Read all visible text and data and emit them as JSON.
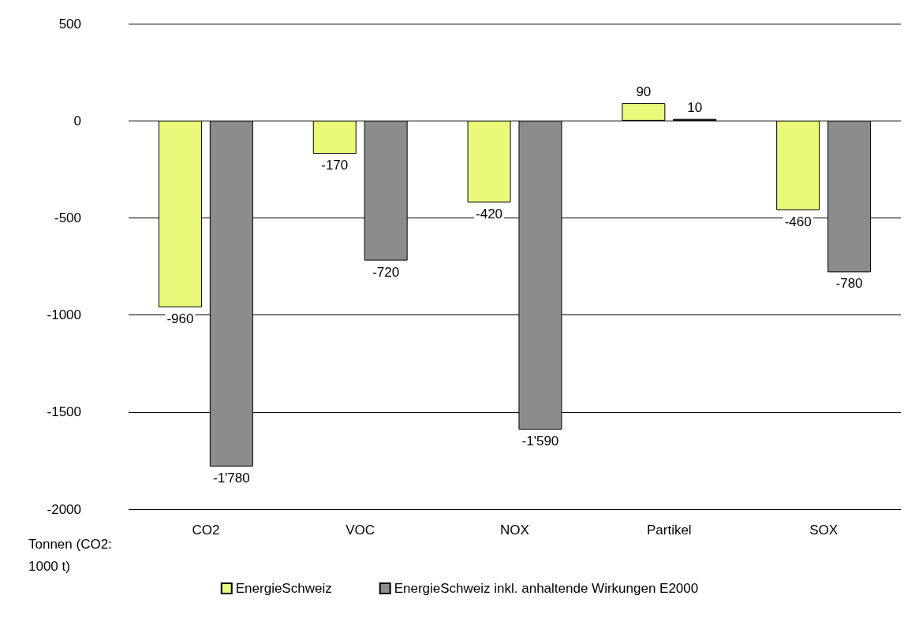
{
  "chart_data": {
    "type": "bar",
    "ylabel": "Tonnen (CO2: 1000 t)",
    "categories": [
      "CO2",
      "VOC",
      "NOX",
      "Partikel",
      "SOX"
    ],
    "series": [
      {
        "name": "EnergieSchweiz",
        "color": "#eaf97a",
        "values": [
          -960,
          -170,
          -420,
          90,
          -460
        ],
        "value_labels": [
          "-960",
          "-170",
          "-420",
          "90",
          "-460"
        ]
      },
      {
        "name": "EnergieSchweiz inkl. anhaltende Wirkungen E2000",
        "color": "#8c8c8c",
        "values": [
          -1780,
          -720,
          -1590,
          10,
          -780
        ],
        "value_labels": [
          "-1'780",
          "-720",
          "-1'590",
          "10",
          "-780"
        ]
      }
    ],
    "ylim": [
      -2000,
      500
    ],
    "yticks": [
      -2000,
      -1500,
      -1000,
      -500,
      0,
      500
    ],
    "grid": "y",
    "legend": "bottom"
  }
}
